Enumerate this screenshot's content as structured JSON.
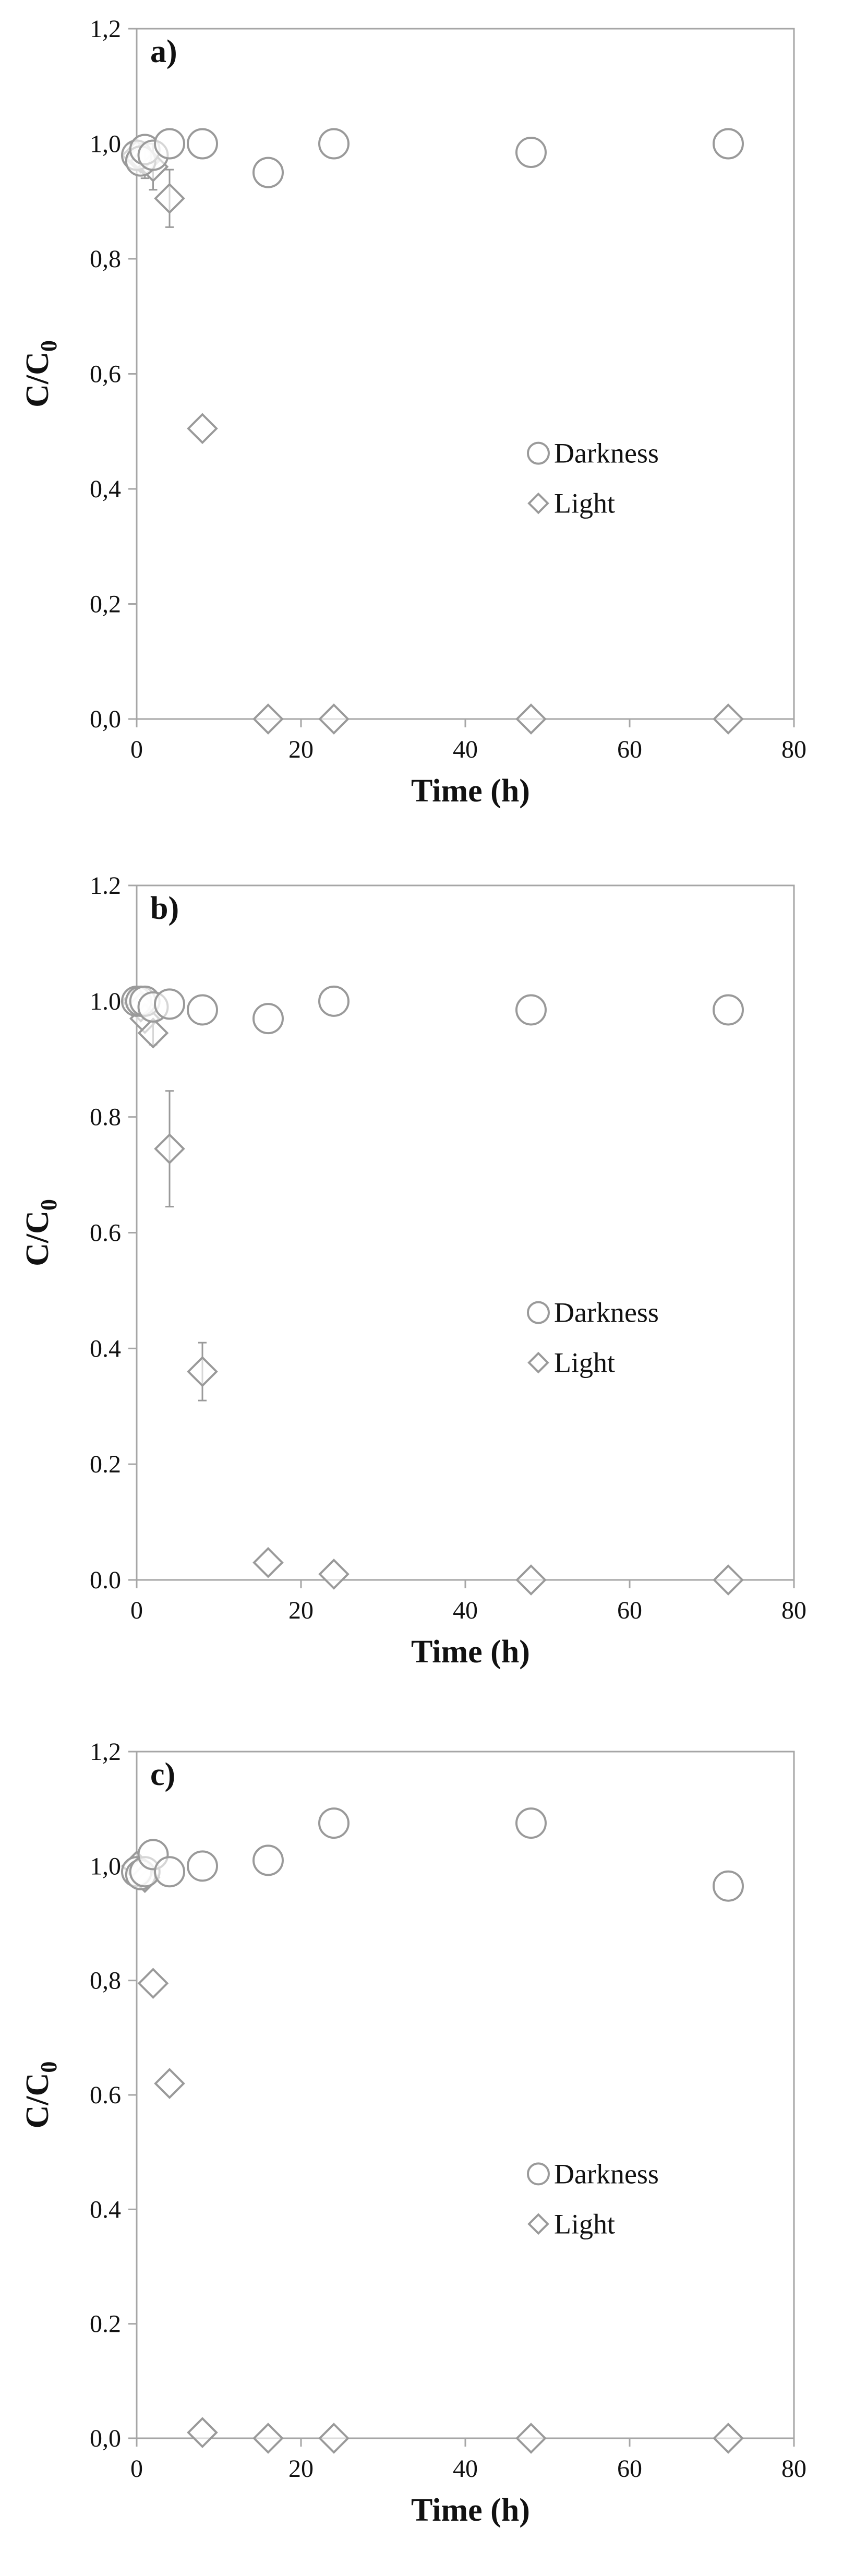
{
  "legend": {
    "darkness": "Darkness",
    "light": "Light",
    "position": "center-right"
  },
  "axis_text": {
    "xlabel": "Time (h)",
    "ylabel_main": "C/C",
    "ylabel_sub": "0"
  },
  "style": {
    "marker_stroke": "#9a9a9a",
    "axis_color": "#a6a6a6",
    "text_color": "#111111"
  },
  "chart_data": [
    {
      "type": "scatter",
      "panel_label": "a)",
      "xlabel": "Time (h)",
      "ylabel": "C/C0",
      "xlim": [
        0,
        80
      ],
      "ylim": [
        0,
        1.2
      ],
      "x_ticks": [
        "0",
        "20",
        "40",
        "60",
        "80"
      ],
      "y_ticks": [
        "0,0",
        "0,2",
        "0,4",
        "0,6",
        "0,8",
        "1,0",
        "1,2"
      ],
      "grid": false,
      "series": [
        {
          "name": "Darkness",
          "marker": "circle",
          "x": [
            0,
            0.5,
            1,
            2,
            4,
            8,
            16,
            24,
            48,
            72
          ],
          "y": [
            0.98,
            0.97,
            0.99,
            0.98,
            1.0,
            1.0,
            0.95,
            1.0,
            0.985,
            1.0
          ],
          "err": [
            0,
            0,
            0,
            0,
            0,
            0,
            0,
            0,
            0,
            0
          ]
        },
        {
          "name": "Light",
          "marker": "diamond",
          "x": [
            0,
            0.5,
            1,
            2,
            4,
            8,
            16,
            24,
            48,
            72
          ],
          "y": [
            0.98,
            0.975,
            0.97,
            0.96,
            0.905,
            0.505,
            0.0,
            0.0,
            0.0,
            0.0
          ],
          "err": [
            0,
            0,
            0.03,
            0.04,
            0.05,
            0,
            0,
            0,
            0,
            0
          ]
        }
      ]
    },
    {
      "type": "scatter",
      "panel_label": "b)",
      "xlabel": "Time (h)",
      "ylabel": "C/C0",
      "xlim": [
        0,
        80
      ],
      "ylim": [
        0,
        1.2
      ],
      "x_ticks": [
        "0",
        "20",
        "40",
        "60",
        "80"
      ],
      "y_ticks": [
        "0.0",
        "0.2",
        "0.4",
        "0.6",
        "0.8",
        "1.0",
        "1.2"
      ],
      "grid": false,
      "series": [
        {
          "name": "Darkness",
          "marker": "circle",
          "x": [
            0,
            0.5,
            1,
            2,
            4,
            8,
            16,
            24,
            48,
            72
          ],
          "y": [
            1.0,
            1.0,
            1.0,
            0.99,
            0.995,
            0.985,
            0.97,
            1.0,
            0.985,
            0.985
          ],
          "err": [
            0,
            0,
            0,
            0,
            0,
            0,
            0,
            0,
            0,
            0
          ]
        },
        {
          "name": "Light",
          "marker": "diamond",
          "x": [
            0,
            0.5,
            1,
            2,
            4,
            8,
            16,
            24,
            48,
            72
          ],
          "y": [
            1.0,
            0.99,
            0.97,
            0.945,
            0.745,
            0.36,
            0.03,
            0.01,
            0.0,
            0.0
          ],
          "err": [
            0,
            0,
            0,
            0.02,
            0.1,
            0.05,
            0,
            0,
            0,
            0
          ]
        }
      ]
    },
    {
      "type": "scatter",
      "panel_label": "c)",
      "xlabel": "Time (h)",
      "ylabel": "C/C0",
      "xlim": [
        0,
        80
      ],
      "ylim": [
        0,
        1.2
      ],
      "x_ticks": [
        "0",
        "20",
        "40",
        "60",
        "80"
      ],
      "y_ticks": [
        "0,0",
        "0.2",
        "0.4",
        "0.6",
        "0,8",
        "1,0",
        "1,2"
      ],
      "grid": false,
      "series": [
        {
          "name": "Darkness",
          "marker": "circle",
          "x": [
            0,
            0.5,
            1,
            2,
            4,
            8,
            16,
            24,
            48,
            72
          ],
          "y": [
            0.99,
            0.985,
            0.99,
            1.02,
            0.99,
            1.0,
            1.01,
            1.075,
            1.075,
            0.965
          ],
          "err": [
            0,
            0,
            0,
            0,
            0,
            0,
            0,
            0,
            0,
            0
          ]
        },
        {
          "name": "Light",
          "marker": "diamond",
          "x": [
            0,
            0.5,
            1,
            2,
            4,
            8,
            16,
            24,
            48,
            72
          ],
          "y": [
            1.0,
            0.99,
            0.98,
            0.795,
            0.62,
            0.01,
            0.0,
            0.0,
            0.0,
            0.0
          ],
          "err": [
            0,
            0,
            0,
            0,
            0,
            0,
            0,
            0,
            0,
            0
          ]
        }
      ]
    }
  ]
}
